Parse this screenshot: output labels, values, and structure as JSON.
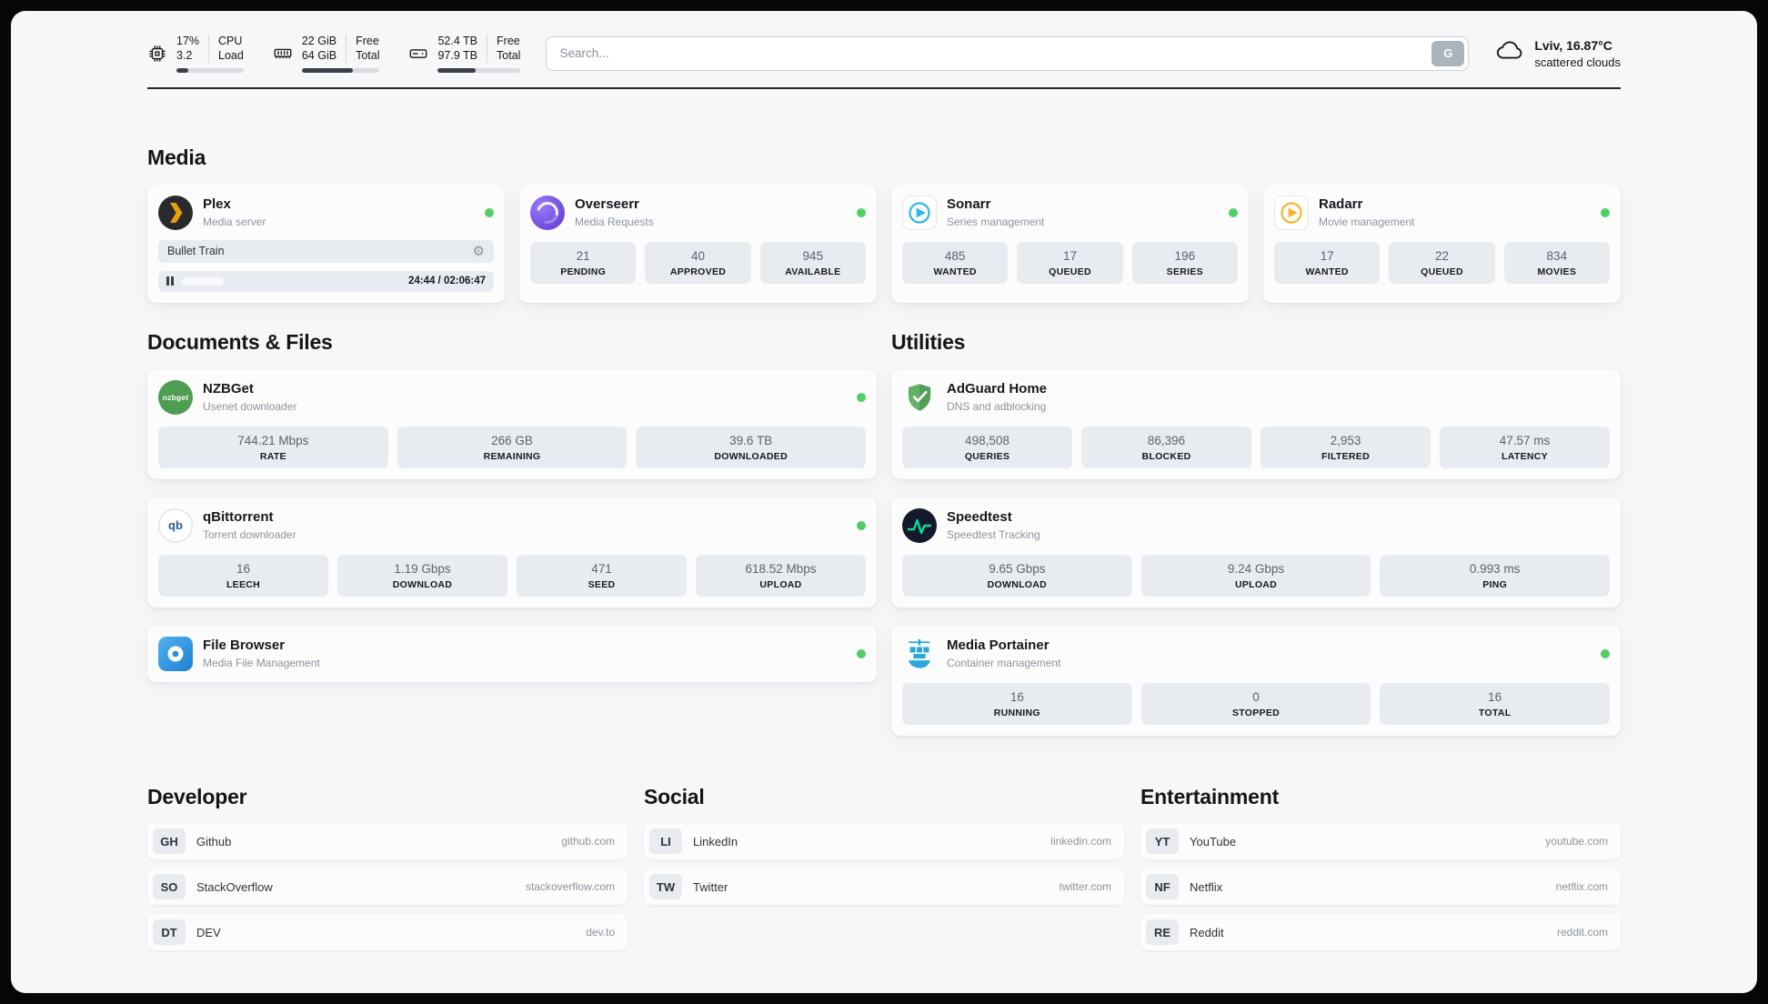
{
  "colors": {
    "status_green": "#51cf66",
    "plex_yellow": "#e5a00d",
    "sonarr_blue": "#2fb5e8",
    "radarr_amber": "#f5b52e",
    "adguard_green": "#63b168",
    "portainer_blue": "#2aa7dd",
    "speedtest_green": "#00e091"
  },
  "icons": {
    "gear": "⚙"
  },
  "topbar": {
    "cpu": {
      "line1": "17%",
      "line2": "3.2",
      "label1": "CPU",
      "label2": "Load",
      "progress": 17
    },
    "ram": {
      "line1": "22 GiB",
      "line2": "64 GiB",
      "label1": "Free",
      "label2": "Total",
      "progress": 66
    },
    "disk": {
      "line1": "52.4 TB",
      "line2": "97.9 TB",
      "label1": "Free",
      "label2": "Total",
      "progress": 46
    },
    "search": {
      "placeholder": "Search...",
      "engine_label": "G"
    },
    "weather": {
      "location": "Lviv, 16.87°C",
      "condition": "scattered clouds"
    }
  },
  "sections": {
    "media": "Media",
    "documents": "Documents & Files",
    "utilities": "Utilities",
    "developer": "Developer",
    "social": "Social",
    "entertainment": "Entertainment"
  },
  "media": {
    "plex": {
      "name": "Plex",
      "subtitle": "Media server",
      "now_playing": "Bullet Train",
      "time": "24:44 / 02:06:47",
      "progress": 19
    },
    "overseerr": {
      "name": "Overseerr",
      "subtitle": "Media Requests",
      "stats": [
        {
          "value": "21",
          "label": "PENDING"
        },
        {
          "value": "40",
          "label": "APPROVED"
        },
        {
          "value": "945",
          "label": "AVAILABLE"
        }
      ]
    },
    "sonarr": {
      "name": "Sonarr",
      "subtitle": "Series management",
      "stats": [
        {
          "value": "485",
          "label": "WANTED"
        },
        {
          "value": "17",
          "label": "QUEUED"
        },
        {
          "value": "196",
          "label": "SERIES"
        }
      ]
    },
    "radarr": {
      "name": "Radarr",
      "subtitle": "Movie management",
      "stats": [
        {
          "value": "17",
          "label": "WANTED"
        },
        {
          "value": "22",
          "label": "QUEUED"
        },
        {
          "value": "834",
          "label": "MOVIES"
        }
      ]
    }
  },
  "documents": {
    "nzbget": {
      "name": "NZBGet",
      "subtitle": "Usenet downloader",
      "icon_text": "nzbget",
      "stats": [
        {
          "value": "744.21 Mbps",
          "label": "RATE"
        },
        {
          "value": "266 GB",
          "label": "REMAINING"
        },
        {
          "value": "39.6 TB",
          "label": "DOWNLOADED"
        }
      ]
    },
    "qbittorrent": {
      "name": "qBittorrent",
      "subtitle": "Torrent downloader",
      "icon_text": "qb",
      "stats": [
        {
          "value": "16",
          "label": "LEECH"
        },
        {
          "value": "1.19 Gbps",
          "label": "DOWNLOAD"
        },
        {
          "value": "471",
          "label": "SEED"
        },
        {
          "value": "618.52 Mbps",
          "label": "UPLOAD"
        }
      ]
    },
    "filebrowser": {
      "name": "File Browser",
      "subtitle": "Media File Management"
    }
  },
  "utilities": {
    "adguard": {
      "name": "AdGuard Home",
      "subtitle": "DNS and adblocking",
      "stats": [
        {
          "value": "498,508",
          "label": "QUERIES"
        },
        {
          "value": "86,396",
          "label": "BLOCKED"
        },
        {
          "value": "2,953",
          "label": "FILTERED"
        },
        {
          "value": "47.57 ms",
          "label": "LATENCY"
        }
      ]
    },
    "speedtest": {
      "name": "Speedtest",
      "subtitle": "Speedtest Tracking",
      "stats": [
        {
          "value": "9.65 Gbps",
          "label": "DOWNLOAD"
        },
        {
          "value": "9.24 Gbps",
          "label": "UPLOAD"
        },
        {
          "value": "0.993 ms",
          "label": "PING"
        }
      ]
    },
    "portainer": {
      "name": "Media Portainer",
      "subtitle": "Container management",
      "stats": [
        {
          "value": "16",
          "label": "RUNNING"
        },
        {
          "value": "0",
          "label": "STOPPED"
        },
        {
          "value": "16",
          "label": "TOTAL"
        }
      ]
    }
  },
  "bookmarks": {
    "developer": [
      {
        "abbr": "GH",
        "name": "Github",
        "url": "github.com"
      },
      {
        "abbr": "SO",
        "name": "StackOverflow",
        "url": "stackoverflow.com"
      },
      {
        "abbr": "DT",
        "name": "DEV",
        "url": "dev.to"
      }
    ],
    "social": [
      {
        "abbr": "LI",
        "name": "LinkedIn",
        "url": "linkedin.com"
      },
      {
        "abbr": "TW",
        "name": "Twitter",
        "url": "twitter.com"
      }
    ],
    "entertainment": [
      {
        "abbr": "YT",
        "name": "YouTube",
        "url": "youtube.com"
      },
      {
        "abbr": "NF",
        "name": "Netflix",
        "url": "netflix.com"
      },
      {
        "abbr": "RE",
        "name": "Reddit",
        "url": "reddit.com"
      }
    ]
  }
}
